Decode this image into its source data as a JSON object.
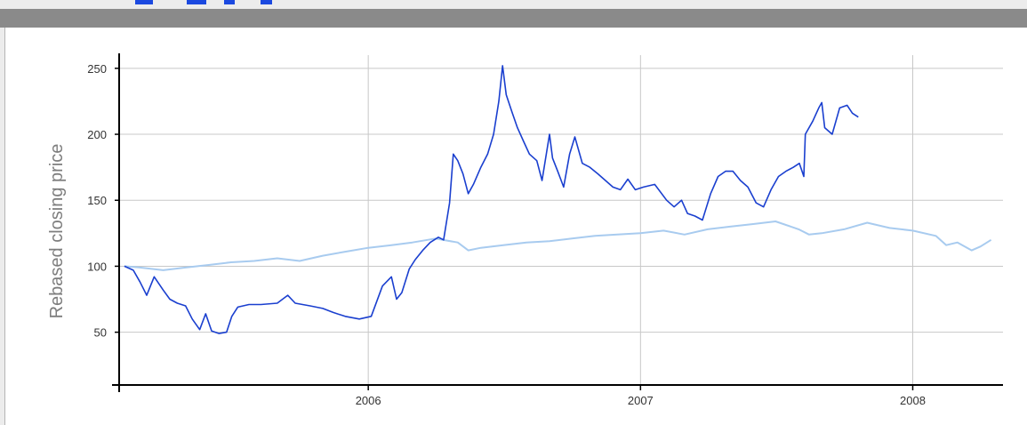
{
  "chart_data": {
    "type": "line",
    "title": "",
    "xlabel": "",
    "ylabel": "Rebased closing price",
    "x_ticks": [
      "2006",
      "2007",
      "2008"
    ],
    "y_ticks": [
      50,
      100,
      150,
      200,
      250
    ],
    "ylim": [
      10,
      260
    ],
    "xlim": [
      "2005-02-01",
      "2008-05-01"
    ],
    "grid": true,
    "legend": "none",
    "series": [
      {
        "color": "#1a3fcf",
        "points": [
          [
            "2005-02-08",
            100
          ],
          [
            "2005-02-20",
            97
          ],
          [
            "2005-03-01",
            88
          ],
          [
            "2005-03-10",
            78
          ],
          [
            "2005-03-20",
            92
          ],
          [
            "2005-04-01",
            82
          ],
          [
            "2005-04-10",
            75
          ],
          [
            "2005-04-20",
            72
          ],
          [
            "2005-05-01",
            70
          ],
          [
            "2005-05-10",
            60
          ],
          [
            "2005-05-20",
            52
          ],
          [
            "2005-05-28",
            64
          ],
          [
            "2005-06-05",
            51
          ],
          [
            "2005-06-15",
            49
          ],
          [
            "2005-06-25",
            50
          ],
          [
            "2005-07-02",
            62
          ],
          [
            "2005-07-10",
            69
          ],
          [
            "2005-07-25",
            71
          ],
          [
            "2005-08-10",
            71
          ],
          [
            "2005-09-01",
            72
          ],
          [
            "2005-09-15",
            78
          ],
          [
            "2005-09-25",
            72
          ],
          [
            "2005-10-15",
            70
          ],
          [
            "2005-11-01",
            68
          ],
          [
            "2005-11-15",
            65
          ],
          [
            "2005-12-01",
            62
          ],
          [
            "2005-12-20",
            60
          ],
          [
            "2006-01-05",
            62
          ],
          [
            "2006-01-20",
            85
          ],
          [
            "2006-02-01",
            92
          ],
          [
            "2006-02-08",
            75
          ],
          [
            "2006-02-15",
            80
          ],
          [
            "2006-02-25",
            98
          ],
          [
            "2006-03-05",
            105
          ],
          [
            "2006-03-15",
            112
          ],
          [
            "2006-03-25",
            118
          ],
          [
            "2006-04-05",
            122
          ],
          [
            "2006-04-12",
            120
          ],
          [
            "2006-04-20",
            148
          ],
          [
            "2006-04-25",
            185
          ],
          [
            "2006-05-01",
            180
          ],
          [
            "2006-05-08",
            170
          ],
          [
            "2006-05-15",
            155
          ],
          [
            "2006-05-22",
            162
          ],
          [
            "2006-06-01",
            175
          ],
          [
            "2006-06-10",
            185
          ],
          [
            "2006-06-18",
            200
          ],
          [
            "2006-06-25",
            225
          ],
          [
            "2006-06-30",
            252
          ],
          [
            "2006-07-05",
            230
          ],
          [
            "2006-07-12",
            218
          ],
          [
            "2006-07-20",
            205
          ],
          [
            "2006-07-28",
            195
          ],
          [
            "2006-08-05",
            185
          ],
          [
            "2006-08-15",
            180
          ],
          [
            "2006-08-22",
            165
          ],
          [
            "2006-09-01",
            200
          ],
          [
            "2006-09-05",
            182
          ],
          [
            "2006-09-12",
            172
          ],
          [
            "2006-09-20",
            160
          ],
          [
            "2006-09-28",
            185
          ],
          [
            "2006-10-05",
            198
          ],
          [
            "2006-10-15",
            178
          ],
          [
            "2006-10-25",
            175
          ],
          [
            "2006-11-05",
            170
          ],
          [
            "2006-11-15",
            165
          ],
          [
            "2006-11-25",
            160
          ],
          [
            "2006-12-05",
            158
          ],
          [
            "2006-12-15",
            166
          ],
          [
            "2006-12-25",
            158
          ],
          [
            "2007-01-05",
            160
          ],
          [
            "2007-01-20",
            162
          ],
          [
            "2007-02-05",
            150
          ],
          [
            "2007-02-15",
            145
          ],
          [
            "2007-02-25",
            150
          ],
          [
            "2007-03-05",
            140
          ],
          [
            "2007-03-15",
            138
          ],
          [
            "2007-03-25",
            135
          ],
          [
            "2007-04-05",
            155
          ],
          [
            "2007-04-15",
            168
          ],
          [
            "2007-04-25",
            172
          ],
          [
            "2007-05-05",
            172
          ],
          [
            "2007-05-15",
            165
          ],
          [
            "2007-05-25",
            160
          ],
          [
            "2007-06-05",
            148
          ],
          [
            "2007-06-15",
            145
          ],
          [
            "2007-06-25",
            158
          ],
          [
            "2007-07-05",
            168
          ],
          [
            "2007-07-15",
            172
          ],
          [
            "2007-07-25",
            175
          ],
          [
            "2007-08-02",
            178
          ],
          [
            "2007-08-08",
            168
          ],
          [
            "2007-08-10",
            200
          ],
          [
            "2007-08-20",
            210
          ],
          [
            "2007-08-28",
            220
          ],
          [
            "2007-09-01",
            224
          ],
          [
            "2007-09-05",
            205
          ],
          [
            "2007-09-15",
            200
          ],
          [
            "2007-09-25",
            220
          ],
          [
            "2007-10-05",
            222
          ],
          [
            "2007-10-12",
            216
          ],
          [
            "2007-10-20",
            213
          ]
        ]
      },
      {
        "color": "#a8cbef",
        "points": [
          [
            "2005-02-08",
            100
          ],
          [
            "2005-03-01",
            99
          ],
          [
            "2005-04-01",
            97
          ],
          [
            "2005-05-01",
            99
          ],
          [
            "2005-06-01",
            101
          ],
          [
            "2005-07-01",
            103
          ],
          [
            "2005-08-01",
            104
          ],
          [
            "2005-09-01",
            106
          ],
          [
            "2005-10-01",
            104
          ],
          [
            "2005-11-01",
            108
          ],
          [
            "2005-12-01",
            111
          ],
          [
            "2006-01-01",
            114
          ],
          [
            "2006-02-01",
            116
          ],
          [
            "2006-03-01",
            118
          ],
          [
            "2006-04-01",
            121
          ],
          [
            "2006-05-01",
            118
          ],
          [
            "2006-05-15",
            112
          ],
          [
            "2006-06-01",
            114
          ],
          [
            "2006-07-01",
            116
          ],
          [
            "2006-08-01",
            118
          ],
          [
            "2006-09-01",
            119
          ],
          [
            "2006-10-01",
            121
          ],
          [
            "2006-11-01",
            123
          ],
          [
            "2006-12-01",
            124
          ],
          [
            "2007-01-01",
            125
          ],
          [
            "2007-02-01",
            127
          ],
          [
            "2007-03-01",
            124
          ],
          [
            "2007-04-01",
            128
          ],
          [
            "2007-05-01",
            130
          ],
          [
            "2007-06-01",
            132
          ],
          [
            "2007-07-01",
            134
          ],
          [
            "2007-08-01",
            128
          ],
          [
            "2007-08-15",
            124
          ],
          [
            "2007-09-01",
            125
          ],
          [
            "2007-10-01",
            128
          ],
          [
            "2007-11-01",
            133
          ],
          [
            "2007-12-01",
            129
          ],
          [
            "2008-01-01",
            127
          ],
          [
            "2008-02-01",
            123
          ],
          [
            "2008-02-15",
            116
          ],
          [
            "2008-03-01",
            118
          ],
          [
            "2008-03-20",
            112
          ],
          [
            "2008-04-01",
            115
          ],
          [
            "2008-04-15",
            120
          ]
        ]
      }
    ]
  }
}
